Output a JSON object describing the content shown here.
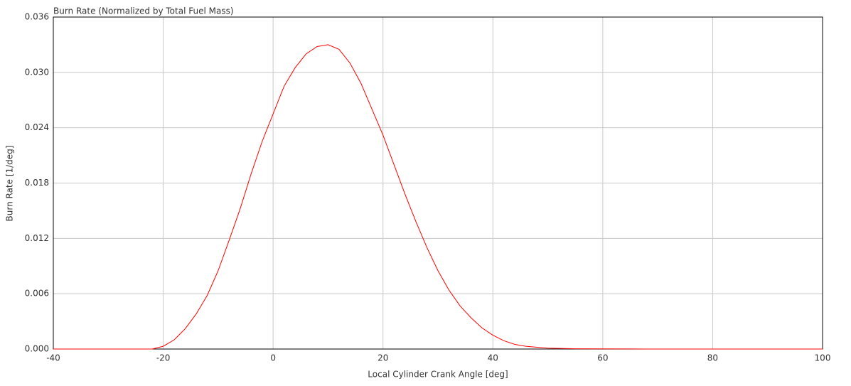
{
  "chart_data": {
    "type": "line",
    "title": "Burn Rate (Normalized by Total Fuel Mass)",
    "x_label": "Local Cylinder Crank Angle [deg]",
    "y_label": "Burn Rate [1/deg]",
    "series": [
      {
        "color": "#ff0000",
        "x": [
          -40,
          -22,
          -20,
          -18,
          -16,
          -14,
          -12,
          -10,
          -8,
          -6,
          -4,
          -2,
          0,
          2,
          4,
          6,
          8,
          10,
          12,
          14,
          16,
          18,
          20,
          22,
          24,
          26,
          28,
          30,
          32,
          34,
          36,
          38,
          40,
          42,
          44,
          46,
          50,
          55,
          68,
          100
        ],
        "values": [
          0,
          0,
          0.0003,
          0.001,
          0.0022,
          0.0038,
          0.0058,
          0.0085,
          0.0118,
          0.0152,
          0.019,
          0.0225,
          0.0255,
          0.0285,
          0.0305,
          0.032,
          0.0328,
          0.033,
          0.0325,
          0.031,
          0.0288,
          0.026,
          0.0232,
          0.02,
          0.0168,
          0.0138,
          0.011,
          0.0085,
          0.0064,
          0.0047,
          0.0034,
          0.0023,
          0.0015,
          0.0009,
          0.0005,
          0.0003,
          0.0001,
          3e-05,
          0,
          0
        ]
      }
    ],
    "xlim": [
      -40,
      100
    ],
    "xticks": [
      -40,
      -20,
      0,
      20,
      40,
      60,
      80,
      100
    ],
    "ylim": [
      0,
      0.036
    ],
    "yticks": [
      {
        "value": 0,
        "label": "0.000"
      },
      0.006,
      0.012,
      0.018,
      0.024,
      {
        "value": 0.03,
        "label": "0.030"
      },
      0.036
    ],
    "grid": true
  }
}
